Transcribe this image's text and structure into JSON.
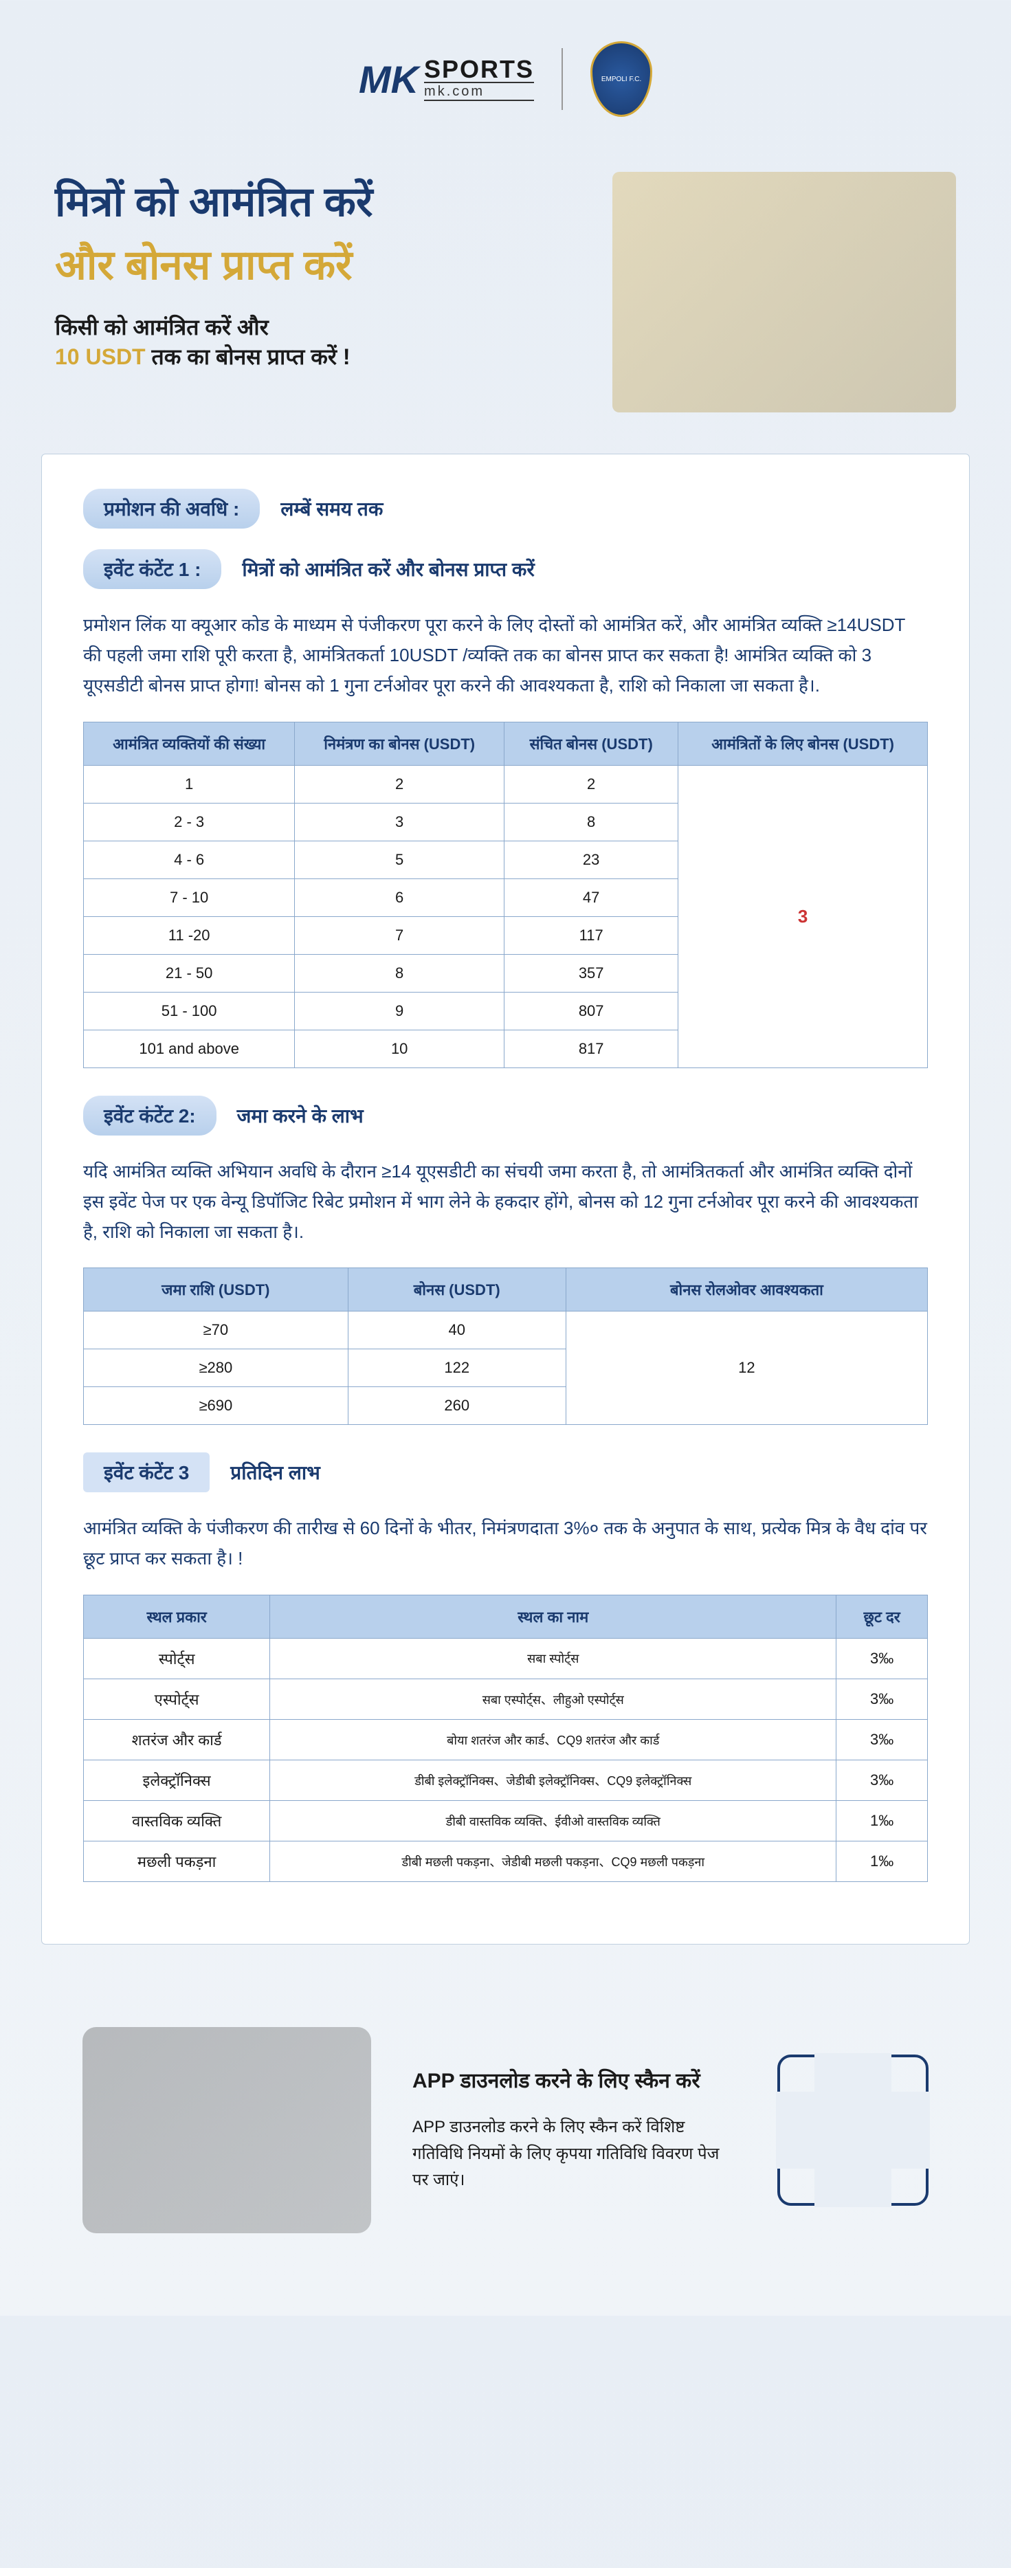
{
  "logo": {
    "mk": "MK",
    "sports": "SPORTS",
    "domain": "mk.com",
    "emblem_text": "EMPOLI F.C."
  },
  "hero": {
    "title1": "मित्रों को आमंत्रित करें",
    "title2": "और बोनस प्राप्त करें",
    "sub1": "किसी को आमंत्रित करें और",
    "sub_amount": "10 USDT",
    "sub2": " तक का बोनस प्राप्त करें !"
  },
  "period": {
    "tag": "प्रमोशन की अवधि :",
    "value": "लम्बें समय तक"
  },
  "event1": {
    "tag": "इवेंट कंटेंट 1 :",
    "label": "मित्रों को आमंत्रित करें और बोनस प्राप्त करें",
    "body": "प्रमोशन लिंक या क्यूआर कोड के माध्यम से पंजीकरण पूरा करने के लिए दोस्तों को आमंत्रित करें, और आमंत्रित व्यक्ति ≥14USDT की पहली जमा राशि पूरी करता है, आमंत्रितकर्ता 10USDT /व्यक्ति तक का बोनस प्राप्त कर सकता है! आमंत्रित व्यक्ति को 3 यूएसडीटी बोनस प्राप्त होगा! बोनस को 1 गुना टर्नओवर पूरा करने की आवश्यकता है, राशि को निकाला जा सकता है।.",
    "headers": [
      "आमंत्रित व्यक्तियों की संख्या",
      "निमंत्रण का बोनस  (USDT)",
      "संचित बोनस  (USDT)",
      "आमंत्रितों के लिए बोनस  (USDT)"
    ],
    "rows": [
      [
        "1",
        "2",
        "2"
      ],
      [
        "2 - 3",
        "3",
        "8"
      ],
      [
        "4 - 6",
        "5",
        "23"
      ],
      [
        "7 - 10",
        "6",
        "47"
      ],
      [
        "11 -20",
        "7",
        "117"
      ],
      [
        "21 - 50",
        "8",
        "357"
      ],
      [
        "51 - 100",
        "9",
        "807"
      ],
      [
        "101 and above",
        "10",
        "817"
      ]
    ],
    "merged_bonus": "3"
  },
  "event2": {
    "tag": "इवेंट कंटेंट 2:",
    "label": "जमा करने के लाभ",
    "body": "यदि आमंत्रित व्यक्ति अभियान अवधि के दौरान ≥14 यूएसडीटी का संचयी जमा करता है, तो आमंत्रितकर्ता और आमंत्रित व्यक्ति दोनों इस इवेंट पेज पर एक वेन्यू डिपॉजिट रिबेट प्रमोशन में भाग लेने के हकदार होंगे, बोनस को 12 गुना टर्नओवर पूरा करने की आवश्यकता है, राशि को निकाला जा सकता है।.",
    "headers": [
      "जमा राशि  (USDT)",
      "बोनस  (USDT)",
      "बोनस रोलओवर आवश्यकता"
    ],
    "rows": [
      [
        "≥70",
        "40"
      ],
      [
        "≥280",
        "122"
      ],
      [
        "≥690",
        "260"
      ]
    ],
    "merged_rollover": "12"
  },
  "event3": {
    "tag": "इवेंट कंटेंट 3",
    "label": "प्रतिदिन लाभ",
    "body": "आमंत्रित व्यक्ति के पंजीकरण की तारीख से 60 दिनों के भीतर, निमंत्रणदाता 3%० तक के अनुपात के साथ, प्रत्येक मित्र के वैध दांव पर छूट प्राप्त कर सकता है। !",
    "headers": [
      "स्थल प्रकार",
      "स्थल का नाम",
      "छूट दर"
    ],
    "rows": [
      [
        "स्पोर्ट्स",
        "सबा स्पोर्ट्स",
        "3‰"
      ],
      [
        "एस्पोर्ट्स",
        "सबा एस्पोर्ट्स、लीहुओ एस्पोर्ट्स",
        "3‰"
      ],
      [
        "शतरंज और कार्ड",
        "बोया शतरंज और कार्ड、CQ9 शतरंज और कार्ड",
        "3‰"
      ],
      [
        "इलेक्ट्रॉनिक्स",
        "डीबी इलेक्ट्रॉनिक्स、जेडीबी इलेक्ट्रॉनिक्स、CQ9 इलेक्ट्रॉनिक्स",
        "3‰"
      ],
      [
        "वास्तविक व्यक्ति",
        "डीबी वास्तविक व्यक्ति、ईवीओ वास्तविक व्यक्ति",
        "1‰"
      ],
      [
        "मछली पकड़ना",
        "डीबी मछली पकड़ना、जेडीबी मछली पकड़ना、CQ9 मछली पकड़ना",
        "1‰"
      ]
    ]
  },
  "footer": {
    "title": "APP  डाउनलोड करने के लिए स्कैन करें",
    "desc": "APP  डाउनलोड करने के लिए स्कैन करें विशिष्ट गतिविधि नियमों के लिए कृपया गतिविधि विवरण पेज पर जाएं।"
  },
  "colors": {
    "primary_blue": "#1a3a6e",
    "gold": "#d4a838",
    "table_header": "#b8d0ec",
    "table_border": "#8aa8cc",
    "bg_gradient_start": "#e8eef5",
    "bg_gradient_end": "#f0f4f8",
    "red": "#cc3333"
  }
}
